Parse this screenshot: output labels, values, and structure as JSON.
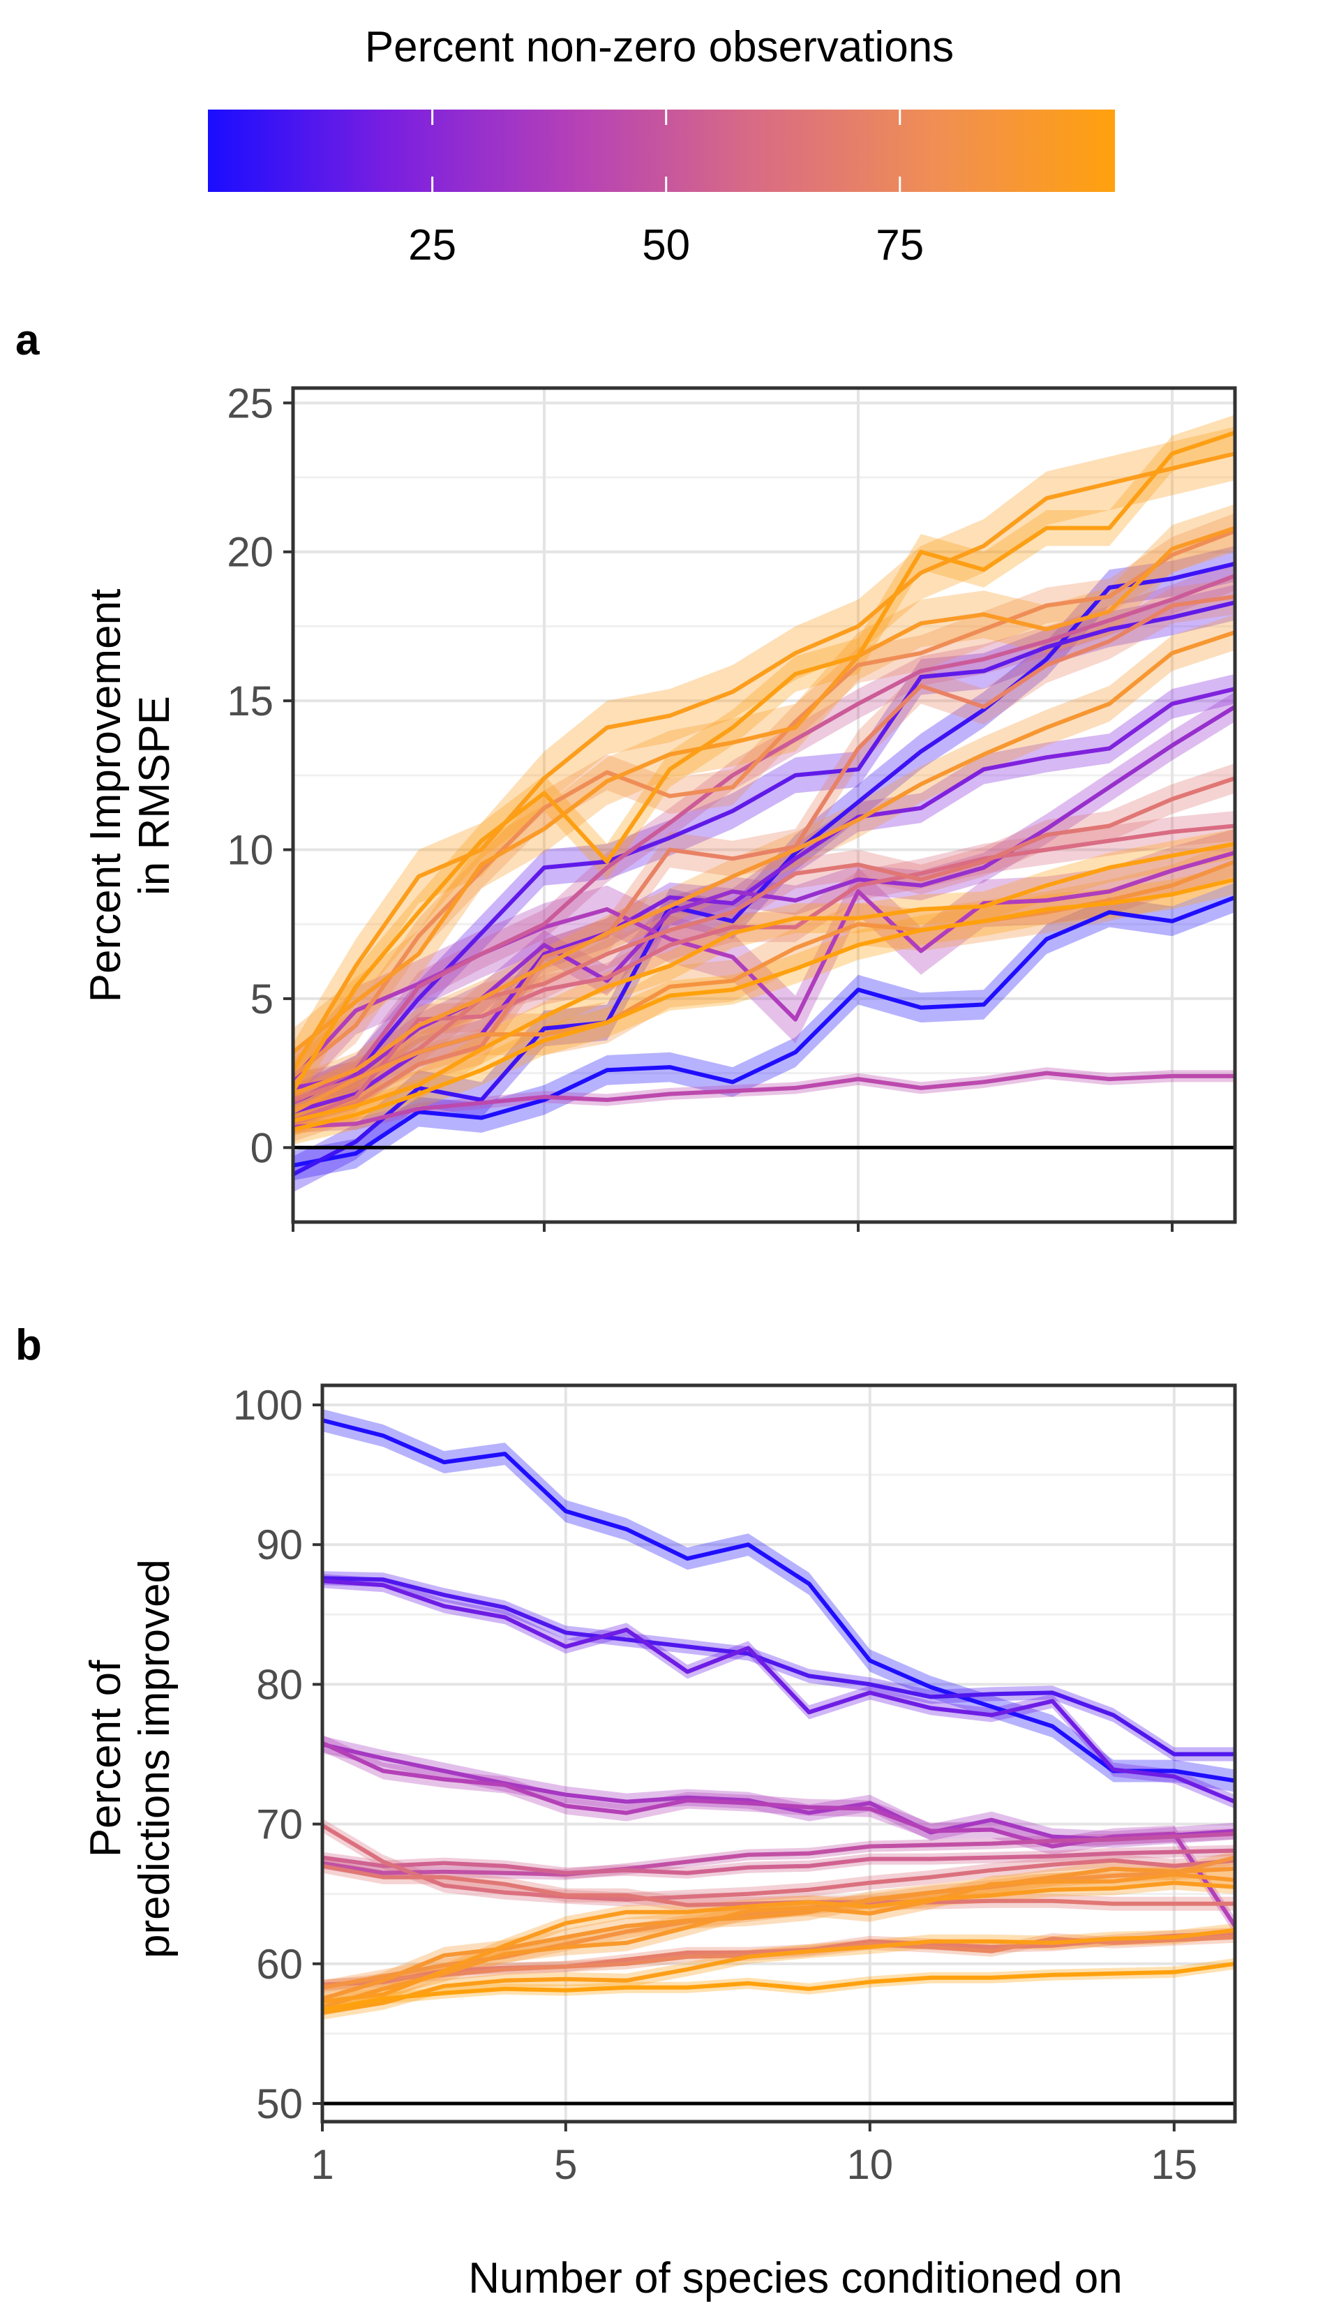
{
  "legend": {
    "title": "Percent non-zero observations",
    "ticks": [
      25,
      50,
      75
    ],
    "min": 1,
    "max": 98,
    "colors": [
      "#1A0DFF",
      "#7A1FE0",
      "#B440B8",
      "#D86B85",
      "#F08E55",
      "#FFA10D"
    ]
  },
  "chart_data": [
    {
      "panel_label": "a",
      "type": "line",
      "title": "",
      "xlabel": "",
      "ylabel": "Percent Improvement in RMSPE",
      "ylabel_lines": [
        "Percent Improvement",
        "in RMSPE"
      ],
      "xlim": [
        1,
        16
      ],
      "ylim": [
        -2.5,
        25.5
      ],
      "xticks": [
        1,
        5,
        10,
        15
      ],
      "yticks": [
        0,
        5,
        10,
        15,
        20,
        25
      ],
      "show_x_tick_labels": false,
      "reference_line": 0,
      "grid": true,
      "x": [
        1,
        2,
        3,
        4,
        5,
        6,
        7,
        8,
        9,
        10,
        11,
        12,
        13,
        14,
        15,
        16
      ],
      "series": [
        {
          "pct": 2,
          "band": 0.5,
          "values": [
            -0.6,
            -0.2,
            1.2,
            1.0,
            1.6,
            2.6,
            2.7,
            2.2,
            3.2,
            5.3,
            4.7,
            4.8,
            7.0,
            7.9,
            7.6,
            8.4
          ]
        },
        {
          "pct": 8,
          "band": 0.6,
          "values": [
            -0.9,
            0.2,
            2.0,
            1.6,
            4.0,
            4.2,
            8.1,
            7.6,
            9.9,
            11.6,
            13.3,
            14.7,
            16.4,
            18.8,
            19.1,
            19.6
          ]
        },
        {
          "pct": 15,
          "band": 0.6,
          "values": [
            1.5,
            2.5,
            5.0,
            7.2,
            9.4,
            9.6,
            10.4,
            11.3,
            12.5,
            12.7,
            15.8,
            16.0,
            16.8,
            17.4,
            17.8,
            18.3
          ]
        },
        {
          "pct": 22,
          "band": 0.5,
          "values": [
            1.2,
            1.8,
            3.2,
            3.8,
            6.5,
            7.2,
            8.4,
            8.2,
            9.7,
            11.1,
            11.4,
            12.7,
            13.1,
            13.4,
            14.9,
            15.4
          ]
        },
        {
          "pct": 30,
          "band": 0.5,
          "values": [
            2.0,
            2.4,
            4.0,
            5.0,
            6.8,
            5.6,
            7.9,
            8.6,
            8.3,
            9.0,
            8.8,
            9.4,
            10.7,
            12.1,
            13.5,
            14.8
          ]
        },
        {
          "pct": 38,
          "band": 0.8,
          "values": [
            2.3,
            4.6,
            5.5,
            6.5,
            7.4,
            8.0,
            7.0,
            6.4,
            4.3,
            8.6,
            6.6,
            8.2,
            8.3,
            8.6,
            9.3,
            9.9
          ]
        },
        {
          "pct": 44,
          "band": 0.2,
          "values": [
            0.7,
            0.8,
            1.3,
            1.5,
            1.7,
            1.6,
            1.8,
            1.9,
            2.0,
            2.3,
            2.0,
            2.2,
            2.5,
            2.3,
            2.4,
            2.4
          ]
        },
        {
          "pct": 52,
          "band": 0.5,
          "values": [
            1.5,
            2.6,
            5.4,
            6.5,
            7.5,
            9.4,
            10.9,
            12.5,
            13.7,
            14.9,
            16.0,
            16.4,
            17.0,
            17.7,
            18.4,
            19.2
          ]
        },
        {
          "pct": 60,
          "band": 0.5,
          "values": [
            0.9,
            1.7,
            4.3,
            4.4,
            5.3,
            5.7,
            6.8,
            7.4,
            7.4,
            8.8,
            9.2,
            9.7,
            10.0,
            10.3,
            10.6,
            10.8
          ]
        },
        {
          "pct": 66,
          "band": 0.5,
          "values": [
            1.6,
            2.3,
            3.3,
            5.0,
            5.5,
            6.5,
            7.3,
            7.9,
            9.2,
            9.5,
            9.0,
            9.6,
            10.5,
            10.8,
            11.7,
            12.4
          ]
        },
        {
          "pct": 72,
          "band": 0.6,
          "values": [
            0.8,
            1.5,
            2.8,
            3.4,
            6.4,
            7.1,
            10.0,
            9.7,
            10.1,
            13.4,
            15.5,
            14.8,
            16.2,
            17.0,
            18.2,
            18.5
          ]
        },
        {
          "pct": 78,
          "band": 0.6,
          "values": [
            2.4,
            4.1,
            7.1,
            9.3,
            11.4,
            12.6,
            11.8,
            12.1,
            14.3,
            16.2,
            16.6,
            17.4,
            18.2,
            18.5,
            19.9,
            20.7
          ]
        },
        {
          "pct": 84,
          "band": 0.7,
          "values": [
            1.2,
            2.3,
            3.2,
            3.8,
            3.8,
            4.2,
            5.4,
            5.6,
            6.7,
            7.5,
            7.3,
            7.6,
            7.9,
            8.3,
            8.8,
            9.6
          ]
        },
        {
          "pct": 88,
          "band": 0.6,
          "values": [
            1.8,
            2.6,
            4.1,
            5.0,
            6.1,
            7.2,
            8.1,
            9.1,
            10.0,
            11.0,
            12.2,
            13.2,
            14.1,
            14.9,
            16.6,
            17.3
          ]
        },
        {
          "pct": 91,
          "band": 0.8,
          "values": [
            3.2,
            4.9,
            6.5,
            9.5,
            10.7,
            12.3,
            13.2,
            13.6,
            14.1,
            16.5,
            17.6,
            17.9,
            17.4,
            18.0,
            20.1,
            20.8
          ]
        },
        {
          "pct": 94,
          "band": 0.9,
          "values": [
            2.6,
            6.1,
            9.1,
            10.0,
            12.4,
            14.1,
            14.5,
            15.3,
            16.6,
            17.5,
            19.3,
            20.2,
            21.8,
            22.3,
            22.8,
            23.3
          ]
        },
        {
          "pct": 96,
          "band": 0.6,
          "values": [
            1.9,
            5.4,
            7.9,
            10.3,
            11.9,
            9.6,
            12.7,
            14.1,
            15.9,
            16.5,
            20.0,
            19.4,
            20.8,
            20.8,
            23.3,
            24.0
          ]
        },
        {
          "pct": 98,
          "band": 0.5,
          "values": [
            0.6,
            1.1,
            1.8,
            2.6,
            3.6,
            4.2,
            5.1,
            5.3,
            6.0,
            6.8,
            7.3,
            7.6,
            8.0,
            8.2,
            8.5,
            9.0
          ]
        },
        {
          "pct": 97,
          "band": 0.5,
          "values": [
            0.9,
            1.4,
            2.1,
            3.3,
            4.4,
            5.4,
            6.1,
            7.2,
            7.7,
            7.7,
            8.0,
            8.1,
            8.8,
            9.4,
            9.8,
            10.2
          ]
        }
      ]
    },
    {
      "panel_label": "b",
      "type": "line",
      "title": "",
      "xlabel": "Number of species conditioned on",
      "ylabel": "Percent of predictions improved",
      "ylabel_lines": [
        "Percent of",
        "predictions improved"
      ],
      "xlim": [
        1,
        16
      ],
      "ylim": [
        48.7,
        101.4
      ],
      "xticks": [
        1,
        5,
        10,
        15
      ],
      "yticks": [
        50,
        60,
        70,
        80,
        90,
        100
      ],
      "show_x_tick_labels": true,
      "reference_line": 50,
      "grid": true,
      "x": [
        1,
        2,
        3,
        4,
        5,
        6,
        7,
        8,
        9,
        10,
        11,
        12,
        13,
        14,
        15,
        16
      ],
      "series": [
        {
          "pct": 2,
          "band": 0.8,
          "values": [
            98.9,
            97.8,
            95.9,
            96.5,
            92.4,
            91.1,
            89.0,
            90.0,
            87.2,
            81.7,
            79.8,
            78.4,
            77.0,
            73.8,
            73.8,
            73.1
          ]
        },
        {
          "pct": 12,
          "band": 0.5,
          "values": [
            87.6,
            87.5,
            86.4,
            85.5,
            83.7,
            83.2,
            82.7,
            82.2,
            80.6,
            80.0,
            79.1,
            79.3,
            79.4,
            77.8,
            75.0,
            75.0
          ]
        },
        {
          "pct": 18,
          "band": 0.5,
          "values": [
            87.4,
            87.1,
            85.6,
            84.8,
            82.7,
            83.9,
            80.9,
            82.6,
            78.0,
            79.4,
            78.3,
            77.8,
            78.8,
            73.9,
            73.4,
            71.6
          ]
        },
        {
          "pct": 35,
          "band": 0.6,
          "values": [
            75.7,
            74.7,
            73.8,
            72.9,
            72.1,
            71.6,
            71.9,
            71.7,
            70.8,
            71.5,
            69.4,
            70.3,
            69.1,
            68.9,
            69.2,
            69.5
          ]
        },
        {
          "pct": 40,
          "band": 0.6,
          "values": [
            75.8,
            73.8,
            73.2,
            72.8,
            71.3,
            70.8,
            71.7,
            71.5,
            71.2,
            71.1,
            69.5,
            69.6,
            68.4,
            69.1,
            69.3,
            62.7
          ]
        },
        {
          "pct": 47,
          "band": 0.4,
          "values": [
            67.2,
            66.5,
            66.6,
            66.5,
            66.4,
            66.8,
            67.3,
            67.8,
            67.9,
            68.4,
            68.5,
            68.6,
            68.8,
            68.9,
            69.1,
            69.3
          ]
        },
        {
          "pct": 55,
          "band": 0.4,
          "values": [
            67.6,
            67.0,
            67.2,
            67.0,
            66.5,
            66.7,
            66.5,
            66.9,
            67.0,
            67.5,
            67.5,
            67.6,
            67.7,
            67.9,
            68.0,
            68.1
          ]
        },
        {
          "pct": 62,
          "band": 0.5,
          "values": [
            69.9,
            67.3,
            65.6,
            65.1,
            64.8,
            64.6,
            64.8,
            65.0,
            65.3,
            65.8,
            66.2,
            66.7,
            67.1,
            67.4,
            67.0,
            67.4
          ]
        },
        {
          "pct": 66,
          "band": 0.5,
          "values": [
            67.0,
            66.2,
            66.2,
            65.7,
            64.9,
            64.9,
            64.2,
            64.3,
            64.4,
            64.4,
            64.4,
            64.5,
            64.5,
            64.3,
            64.3,
            64.3
          ]
        },
        {
          "pct": 70,
          "band": 0.4,
          "values": [
            58.5,
            58.7,
            59.5,
            59.7,
            59.8,
            60.3,
            60.8,
            60.8,
            61.0,
            61.6,
            61.4,
            61.2,
            61.3,
            61.7,
            62.0,
            62.2
          ]
        },
        {
          "pct": 74,
          "band": 0.4,
          "values": [
            58.4,
            58.9,
            59.2,
            59.6,
            59.8,
            60.0,
            60.5,
            60.6,
            60.9,
            61.4,
            61.2,
            60.9,
            61.8,
            61.5,
            61.7,
            61.9
          ]
        },
        {
          "pct": 84,
          "band": 0.5,
          "values": [
            58.3,
            59.1,
            59.9,
            60.5,
            61.4,
            62.3,
            63.0,
            63.5,
            64.0,
            64.5,
            65.1,
            65.5,
            66.0,
            66.3,
            66.5,
            67.6
          ]
        },
        {
          "pct": 88,
          "band": 0.6,
          "values": [
            57.5,
            58.8,
            60.6,
            61.1,
            61.9,
            62.7,
            63.1,
            63.3,
            63.7,
            64.6,
            65.1,
            65.6,
            66.2,
            66.8,
            66.6,
            66.8
          ]
        },
        {
          "pct": 90,
          "band": 0.6,
          "values": [
            56.9,
            58.2,
            59.3,
            60.7,
            61.2,
            61.5,
            62.6,
            63.8,
            64.0,
            63.6,
            64.5,
            65.7,
            65.9,
            65.9,
            66.4,
            66.0
          ]
        },
        {
          "pct": 93,
          "band": 0.5,
          "values": [
            57.3,
            57.8,
            59.5,
            61.3,
            62.9,
            63.7,
            63.7,
            64.1,
            64.4,
            64.1,
            64.6,
            64.9,
            65.3,
            65.4,
            65.8,
            65.5
          ]
        },
        {
          "pct": 95,
          "band": 0.5,
          "values": [
            56.5,
            57.2,
            58.4,
            58.8,
            58.9,
            58.8,
            59.6,
            60.5,
            60.9,
            61.2,
            61.6,
            61.6,
            61.5,
            61.8,
            61.9,
            62.4
          ]
        },
        {
          "pct": 98,
          "band": 0.4,
          "values": [
            56.7,
            57.5,
            57.9,
            58.2,
            58.1,
            58.3,
            58.3,
            58.6,
            58.2,
            58.7,
            59.0,
            59.0,
            59.2,
            59.3,
            59.4,
            60.0
          ]
        }
      ]
    }
  ]
}
